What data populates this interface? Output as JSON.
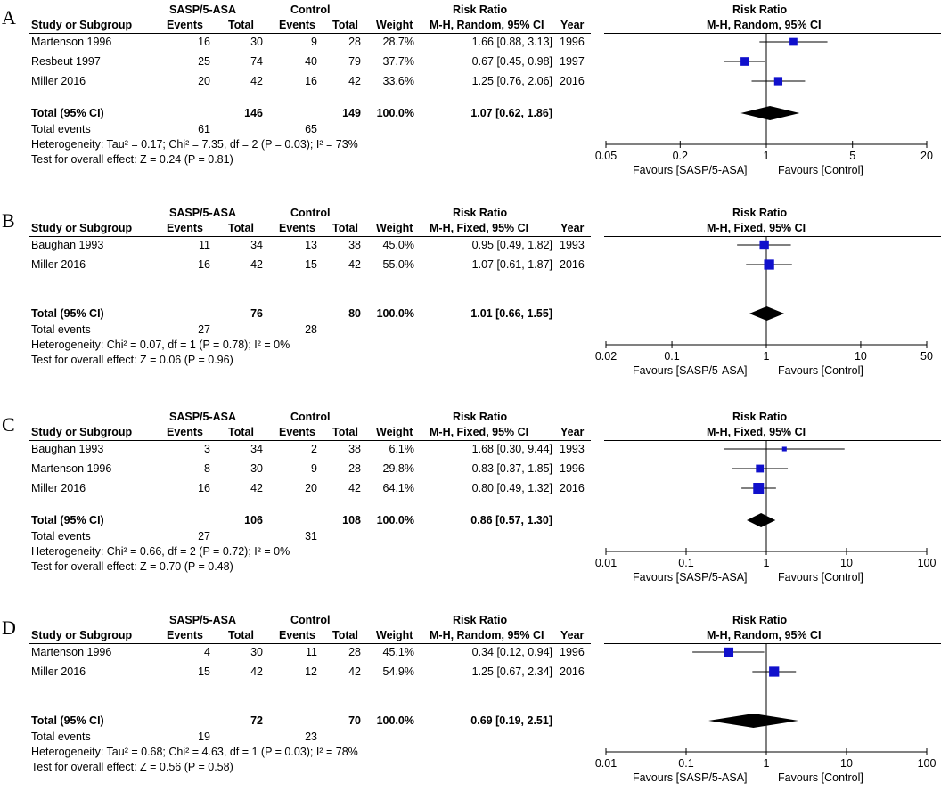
{
  "chart_data": [
    {
      "type": "forest",
      "panel_label": "A",
      "headers": {
        "group1": "SASP/5-ASA",
        "group2": "Control",
        "study": "Study or Subgroup",
        "events": "Events",
        "total": "Total",
        "weight": "Weight",
        "effect_title": "Risk Ratio",
        "effect_method": "M-H, Random, 95% CI",
        "year": "Year"
      },
      "studies": [
        {
          "name": "Martenson 1996",
          "e1": "16",
          "n1": "30",
          "e2": "9",
          "n2": "28",
          "weight": "28.7%",
          "ci": "1.66 [0.88, 3.13]",
          "year": "1996",
          "rr": 1.66,
          "lo": 0.88,
          "hi": 3.13,
          "w": 28.7
        },
        {
          "name": "Resbeut 1997",
          "e1": "25",
          "n1": "74",
          "e2": "40",
          "n2": "79",
          "weight": "37.7%",
          "ci": "0.67 [0.45, 0.98]",
          "year": "1997",
          "rr": 0.67,
          "lo": 0.45,
          "hi": 0.98,
          "w": 37.7
        },
        {
          "name": "Miller  2016",
          "e1": "20",
          "n1": "42",
          "e2": "16",
          "n2": "42",
          "weight": "33.6%",
          "ci": "1.25 [0.76, 2.06]",
          "year": "2016",
          "rr": 1.25,
          "lo": 0.76,
          "hi": 2.06,
          "w": 33.6
        }
      ],
      "total": {
        "label": "Total (95% CI)",
        "n1": "146",
        "n2": "149",
        "weight": "100.0%",
        "ci": "1.07 [0.62, 1.86]",
        "rr": 1.07,
        "lo": 0.62,
        "hi": 1.86
      },
      "total_events": {
        "label": "Total events",
        "e1": "61",
        "e2": "65"
      },
      "heterogeneity": "Heterogeneity: Tau² = 0.17; Chi² = 7.35, df = 2 (P = 0.03); I² = 73%",
      "overall_effect": "Test for overall effect: Z = 0.24 (P = 0.81)",
      "axis": {
        "ticks": [
          0.05,
          0.2,
          1,
          5,
          20
        ],
        "tick_labels": [
          "0.05",
          "0.2",
          "1",
          "5",
          "20"
        ],
        "range": [
          0.05,
          20
        ],
        "left_label": "Favours [SASP/5-ASA]",
        "right_label": "Favours [Control]"
      }
    },
    {
      "type": "forest",
      "panel_label": "B",
      "headers": {
        "group1": "SASP/5-ASA",
        "group2": "Control",
        "study": "Study or Subgroup",
        "events": "Events",
        "total": "Total",
        "weight": "Weight",
        "effect_title": "Risk Ratio",
        "effect_method": "M-H, Fixed, 95% CI",
        "year": "Year"
      },
      "studies": [
        {
          "name": "Baughan 1993",
          "e1": "11",
          "n1": "34",
          "e2": "13",
          "n2": "38",
          "weight": "45.0%",
          "ci": "0.95 [0.49, 1.82]",
          "year": "1993",
          "rr": 0.95,
          "lo": 0.49,
          "hi": 1.82,
          "w": 45.0
        },
        {
          "name": "Miller  2016",
          "e1": "16",
          "n1": "42",
          "e2": "15",
          "n2": "42",
          "weight": "55.0%",
          "ci": "1.07 [0.61, 1.87]",
          "year": "2016",
          "rr": 1.07,
          "lo": 0.61,
          "hi": 1.87,
          "w": 55.0
        }
      ],
      "total": {
        "label": "Total (95% CI)",
        "n1": "76",
        "n2": "80",
        "weight": "100.0%",
        "ci": "1.01 [0.66, 1.55]",
        "rr": 1.01,
        "lo": 0.66,
        "hi": 1.55
      },
      "total_events": {
        "label": "Total events",
        "e1": "27",
        "e2": "28"
      },
      "heterogeneity": "Heterogeneity: Chi² = 0.07, df = 1 (P = 0.78); I² = 0%",
      "overall_effect": "Test for overall effect: Z = 0.06 (P = 0.96)",
      "axis": {
        "ticks": [
          0.02,
          0.1,
          1,
          10,
          50
        ],
        "tick_labels": [
          "0.02",
          "0.1",
          "1",
          "10",
          "50"
        ],
        "range": [
          0.02,
          50
        ],
        "left_label": "Favours [SASP/5-ASA]",
        "right_label": "Favours [Control]"
      }
    },
    {
      "type": "forest",
      "panel_label": "C",
      "headers": {
        "group1": "SASP/5-ASA",
        "group2": "Control",
        "study": "Study or Subgroup",
        "events": "Events",
        "total": "Total",
        "weight": "Weight",
        "effect_title": "Risk Ratio",
        "effect_method": "M-H, Fixed, 95% CI",
        "year": "Year"
      },
      "studies": [
        {
          "name": "Baughan 1993",
          "e1": "3",
          "n1": "34",
          "e2": "2",
          "n2": "38",
          "weight": "6.1%",
          "ci": "1.68 [0.30, 9.44]",
          "year": "1993",
          "rr": 1.68,
          "lo": 0.3,
          "hi": 9.44,
          "w": 6.1
        },
        {
          "name": "Martenson 1996",
          "e1": "8",
          "n1": "30",
          "e2": "9",
          "n2": "28",
          "weight": "29.8%",
          "ci": "0.83 [0.37, 1.85]",
          "year": "1996",
          "rr": 0.83,
          "lo": 0.37,
          "hi": 1.85,
          "w": 29.8
        },
        {
          "name": "Miller  2016",
          "e1": "16",
          "n1": "42",
          "e2": "20",
          "n2": "42",
          "weight": "64.1%",
          "ci": "0.80 [0.49, 1.32]",
          "year": "2016",
          "rr": 0.8,
          "lo": 0.49,
          "hi": 1.32,
          "w": 64.1
        }
      ],
      "total": {
        "label": "Total (95% CI)",
        "n1": "106",
        "n2": "108",
        "weight": "100.0%",
        "ci": "0.86 [0.57, 1.30]",
        "rr": 0.86,
        "lo": 0.57,
        "hi": 1.3
      },
      "total_events": {
        "label": "Total events",
        "e1": "27",
        "e2": "31"
      },
      "heterogeneity": "Heterogeneity: Chi² = 0.66, df = 2 (P = 0.72); I² = 0%",
      "overall_effect": "Test for overall effect: Z = 0.70 (P = 0.48)",
      "axis": {
        "ticks": [
          0.01,
          0.1,
          1,
          10,
          100
        ],
        "tick_labels": [
          "0.01",
          "0.1",
          "1",
          "10",
          "100"
        ],
        "range": [
          0.01,
          100
        ],
        "left_label": "Favours [SASP/5-ASA]",
        "right_label": "Favours [Control]"
      }
    },
    {
      "type": "forest",
      "panel_label": "D",
      "headers": {
        "group1": "SASP/5-ASA",
        "group2": "Control",
        "study": "Study or Subgroup",
        "events": "Events",
        "total": "Total",
        "weight": "Weight",
        "effect_title": "Risk Ratio",
        "effect_method": "M-H, Random, 95% CI",
        "year": "Year"
      },
      "studies": [
        {
          "name": "Martenson 1996",
          "e1": "4",
          "n1": "30",
          "e2": "11",
          "n2": "28",
          "weight": "45.1%",
          "ci": "0.34 [0.12, 0.94]",
          "year": "1996",
          "rr": 0.34,
          "lo": 0.12,
          "hi": 0.94,
          "w": 45.1
        },
        {
          "name": "Miller  2016",
          "e1": "15",
          "n1": "42",
          "e2": "12",
          "n2": "42",
          "weight": "54.9%",
          "ci": "1.25 [0.67, 2.34]",
          "year": "2016",
          "rr": 1.25,
          "lo": 0.67,
          "hi": 2.34,
          "w": 54.9
        }
      ],
      "total": {
        "label": "Total (95% CI)",
        "n1": "72",
        "n2": "70",
        "weight": "100.0%",
        "ci": "0.69 [0.19, 2.51]",
        "rr": 0.69,
        "lo": 0.19,
        "hi": 2.51
      },
      "total_events": {
        "label": "Total events",
        "e1": "19",
        "e2": "23"
      },
      "heterogeneity": "Heterogeneity: Tau² = 0.68; Chi² = 4.63, df = 1 (P = 0.03); I² = 78%",
      "overall_effect": "Test for overall effect: Z = 0.56 (P = 0.58)",
      "axis": {
        "ticks": [
          0.01,
          0.1,
          1,
          10,
          100
        ],
        "tick_labels": [
          "0.01",
          "0.1",
          "1",
          "10",
          "100"
        ],
        "range": [
          0.01,
          100
        ],
        "left_label": "Favours [SASP/5-ASA]",
        "right_label": "Favours [Control]"
      }
    }
  ],
  "colors": {
    "marker": "#1010cc",
    "diamond": "#000000",
    "line": "#000000"
  }
}
